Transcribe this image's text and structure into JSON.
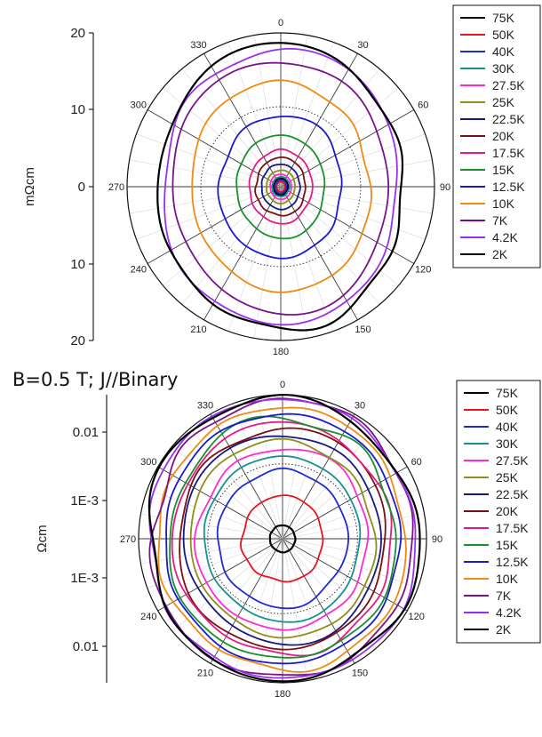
{
  "caption": "B=0.5 T; J//Binary",
  "chart_data": [
    {
      "type": "polar-line",
      "title": "",
      "ylabel": "mΩcm",
      "radial_tick_labels": [
        "20",
        "10",
        "0",
        "10",
        "20"
      ],
      "radial_max": 20,
      "angle_tick_labels": [
        "0",
        "30",
        "60",
        "90",
        "120",
        "150",
        "180",
        "210",
        "240",
        "270",
        "300",
        "330"
      ],
      "grid": "on",
      "legend_position": "top-right",
      "series": [
        {
          "name": "75K",
          "color": "#000000",
          "radius": 1.0
        },
        {
          "name": "50K",
          "color": "#e8141c",
          "radius": 0.6
        },
        {
          "name": "40K",
          "color": "#1f2ad6",
          "radius": 0.8
        },
        {
          "name": "30K",
          "color": "#16918f",
          "radius": 1.2
        },
        {
          "name": "27.5K",
          "color": "#ff2ad4",
          "radius": 1.5
        },
        {
          "name": "25K",
          "color": "#8e8e1a",
          "radius": 2.0
        },
        {
          "name": "22.5K",
          "color": "#151a7c",
          "radius": 2.7
        },
        {
          "name": "20K",
          "color": "#7a0f14",
          "radius": 3.5
        },
        {
          "name": "17.5K",
          "color": "#e61a86",
          "radius": 4.4
        },
        {
          "name": "15K",
          "color": "#18902c",
          "radius": 6.2
        },
        {
          "name": "12.5K",
          "color": "#1a1ad0",
          "radius": 8.6
        },
        {
          "name": "10K",
          "color": "#f08a12",
          "radius": 12.6
        },
        {
          "name": "7K",
          "color": "#78148a",
          "radius": 15.2
        },
        {
          "name": "4.2K",
          "color": "#9b2ff0",
          "radius": 16.6
        },
        {
          "name": "2K",
          "color": "#000000",
          "radius": 17.2
        }
      ]
    },
    {
      "type": "polar-line",
      "title": "",
      "ylabel": "Ωcm",
      "radial_scale": "log",
      "radial_tick_labels": [
        "0.01",
        "1E-3",
        "1E-3",
        "0.01"
      ],
      "angle_tick_labels": [
        "0",
        "30",
        "60",
        "90",
        "120",
        "150",
        "180",
        "210",
        "240",
        "270",
        "300",
        "330"
      ],
      "grid": "on",
      "legend_position": "top-right",
      "series": [
        {
          "name": "75K",
          "color": "#000000",
          "radius": 0.00016
        },
        {
          "name": "50K",
          "color": "#e8141c",
          "radius": 0.00045
        },
        {
          "name": "40K",
          "color": "#1f2ad6",
          "radius": 0.0011
        },
        {
          "name": "30K",
          "color": "#16918f",
          "radius": 0.0018
        },
        {
          "name": "27.5K",
          "color": "#ff2ad4",
          "radius": 0.0024
        },
        {
          "name": "25K",
          "color": "#8e8e1a",
          "radius": 0.0031
        },
        {
          "name": "22.5K",
          "color": "#151a7c",
          "radius": 0.0039
        },
        {
          "name": "20K",
          "color": "#7a0f14",
          "radius": 0.0048
        },
        {
          "name": "17.5K",
          "color": "#e61a86",
          "radius": 0.0058
        },
        {
          "name": "15K",
          "color": "#18902c",
          "radius": 0.0068
        },
        {
          "name": "12.5K",
          "color": "#1a1ad0",
          "radius": 0.008
        },
        {
          "name": "10K",
          "color": "#f08a12",
          "radius": 0.01
        },
        {
          "name": "7K",
          "color": "#78148a",
          "radius": 0.013
        },
        {
          "name": "4.2K",
          "color": "#9b2ff0",
          "radius": 0.014
        },
        {
          "name": "2K",
          "color": "#000000",
          "radius": 0.0145
        }
      ]
    }
  ]
}
